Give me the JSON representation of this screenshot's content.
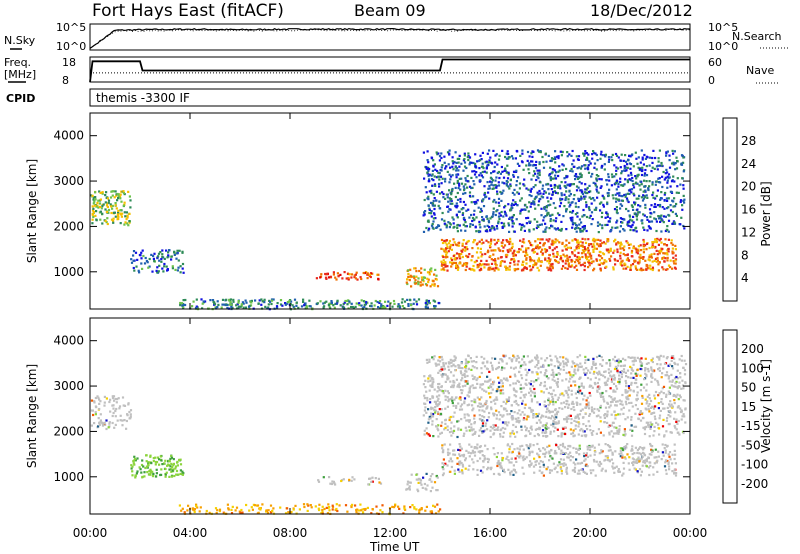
{
  "header": {
    "station": "Fort Hays East (fitACF)",
    "beam": "Beam 09",
    "date": "18/Dec/2012"
  },
  "noise_panel": {
    "left_label": "N.Sky",
    "right_label": "N.Search",
    "left_ticks": [
      "10^5",
      "10^0"
    ],
    "right_ticks": [
      "10^5",
      "10^0"
    ]
  },
  "freq_panel": {
    "left_label_line1": "Freq.",
    "left_label_line2": "[MHz]",
    "right_label": "Nave",
    "left_ticks": [
      "18",
      "8"
    ],
    "right_ticks": [
      "60",
      "0"
    ]
  },
  "cpid_panel": {
    "label": "CPID",
    "text": "themis -3300 IF"
  },
  "x_axis": {
    "label": "Time UT",
    "ticks": [
      "00:00",
      "04:00",
      "08:00",
      "12:00",
      "16:00",
      "20:00",
      "00:00"
    ]
  },
  "colors": {
    "power": [
      "#1010e0",
      "#1f5faf",
      "#2e8b57",
      "#6cc24a",
      "#f5c000",
      "#f07000",
      "#e8281c",
      "#e00000"
    ],
    "velocity": [
      "#ee0000",
      "#f25a00",
      "#f7a000",
      "#f5d000",
      "#c0c0c0",
      "#8cd43c",
      "#3ea03c",
      "#1f5f88",
      "#1010c8"
    ],
    "ground_scatter": "#c0c0c0"
  },
  "chart_data": [
    {
      "type": "line",
      "title": "Fort Hays East (fitACF)   Beam 09   18/Dec/2012",
      "xlabel": "",
      "ylabel": "N.Sky / N.Search",
      "x": [
        0,
        1,
        2,
        4,
        6,
        8,
        10,
        12,
        14,
        16,
        18,
        20,
        22,
        24
      ],
      "series": [
        {
          "name": "N.Sky",
          "values": [
            0.3,
            3.8,
            3.9,
            4.0,
            3.9,
            4.0,
            4.0,
            4.0,
            3.9,
            3.9,
            4.0,
            4.0,
            3.9,
            4.0
          ]
        },
        {
          "name": "N.Search",
          "values": [
            0.3,
            3.6,
            3.7,
            3.8,
            3.7,
            3.8,
            3.8,
            3.8,
            3.7,
            3.8,
            3.8,
            3.7,
            3.8,
            3.9
          ]
        }
      ],
      "ylim": [
        0,
        5
      ]
    },
    {
      "type": "line",
      "xlabel": "",
      "ylabel": "Freq. [MHz]",
      "x": [
        0,
        0.1,
        2.0,
        2.1,
        14.0,
        14.1,
        24
      ],
      "series": [
        {
          "name": "Freq.",
          "values": [
            8,
            16.3,
            16.3,
            12.6,
            12.6,
            17.0,
            17.0
          ]
        },
        {
          "name": "Nave",
          "values": [
            22,
            22,
            22,
            22,
            22,
            22,
            22
          ]
        }
      ],
      "ylim": [
        8,
        18
      ]
    },
    {
      "type": "heatmap",
      "title": "Power [dB]",
      "xlabel": "Time UT",
      "ylabel": "Slant Range [km]",
      "xlim": [
        0,
        24
      ],
      "ylim": [
        180,
        4500
      ],
      "colorbar": {
        "label": "Power [dB]",
        "ticks": [
          4,
          8,
          12,
          16,
          20,
          24,
          28
        ]
      },
      "regions": [
        {
          "t0": 0.0,
          "t1": 1.6,
          "r0": 2050,
          "r1": 2800,
          "value": 14
        },
        {
          "t0": 1.6,
          "t1": 3.7,
          "r0": 1000,
          "r1": 1500,
          "value": 7
        },
        {
          "t0": 9.0,
          "t1": 11.6,
          "r0": 850,
          "r1": 1020,
          "value": 24
        },
        {
          "t0": 12.6,
          "t1": 13.9,
          "r0": 700,
          "r1": 1100,
          "value": 18
        },
        {
          "t0": 14.0,
          "t1": 23.4,
          "r0": 1050,
          "r1": 1750,
          "value": 22
        },
        {
          "t0": 13.3,
          "t1": 23.8,
          "r0": 1900,
          "r1": 3700,
          "value": 6
        },
        {
          "t0": 3.5,
          "t1": 14.0,
          "r0": 200,
          "r1": 420,
          "value": 9
        }
      ]
    },
    {
      "type": "heatmap",
      "title": "Velocity [m s^-1]",
      "xlabel": "Time UT",
      "ylabel": "Slant Range [km]",
      "xlim": [
        0,
        24
      ],
      "ylim": [
        180,
        4500
      ],
      "colorbar": {
        "label": "Velocity [m s-1]",
        "ticks": [
          200,
          100,
          50,
          15,
          -15,
          -50,
          -100,
          -200
        ]
      },
      "regions": [
        {
          "t0": 0.0,
          "t1": 1.6,
          "r0": 2050,
          "r1": 2800,
          "value": 0
        },
        {
          "t0": 1.6,
          "t1": 3.7,
          "r0": 1000,
          "r1": 1500,
          "value": 50
        },
        {
          "t0": 9.0,
          "t1": 11.6,
          "r0": 850,
          "r1": 1020,
          "value": 0
        },
        {
          "t0": 12.6,
          "t1": 13.9,
          "r0": 700,
          "r1": 1100,
          "value": 0
        },
        {
          "t0": 14.0,
          "t1": 23.4,
          "r0": 1050,
          "r1": 1750,
          "value": 0
        },
        {
          "t0": 13.3,
          "t1": 23.8,
          "r0": 1900,
          "r1": 3700,
          "value": 0
        },
        {
          "t0": 3.5,
          "t1": 14.0,
          "r0": 200,
          "r1": 420,
          "value": -40
        }
      ]
    }
  ]
}
